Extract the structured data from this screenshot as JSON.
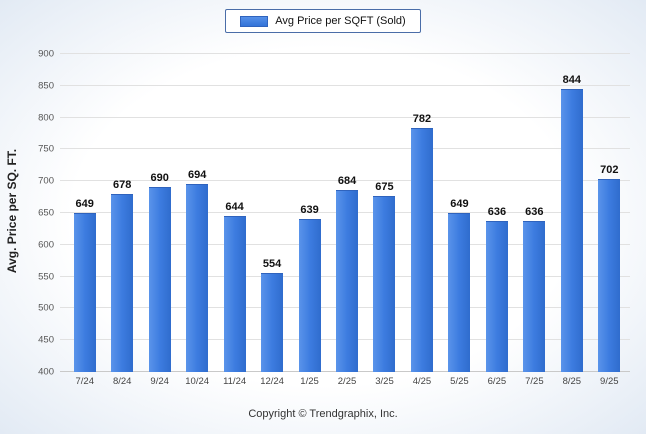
{
  "legend": {
    "label": "Avg Price per SQFT (Sold)",
    "swatch_color": "#3d7ce0"
  },
  "footer": "Copyright © Trendgraphix, Inc.",
  "chart_data": {
    "type": "bar",
    "title": "",
    "xlabel": "",
    "ylabel": "Avg. Price per SQ. FT.",
    "ylim": [
      400,
      900
    ],
    "ytick_step": 50,
    "grid": true,
    "legend_position": "top-center",
    "series_name": "Avg Price per SQFT (Sold)",
    "bar_color": "#3d7ce0",
    "categories": [
      "7/24",
      "8/24",
      "9/24",
      "10/24",
      "11/24",
      "12/24",
      "1/25",
      "2/25",
      "3/25",
      "4/25",
      "5/25",
      "6/25",
      "7/25",
      "8/25",
      "9/25"
    ],
    "values": [
      649,
      678,
      690,
      694,
      644,
      554,
      639,
      684,
      675,
      782,
      649,
      636,
      636,
      844,
      702
    ]
  }
}
